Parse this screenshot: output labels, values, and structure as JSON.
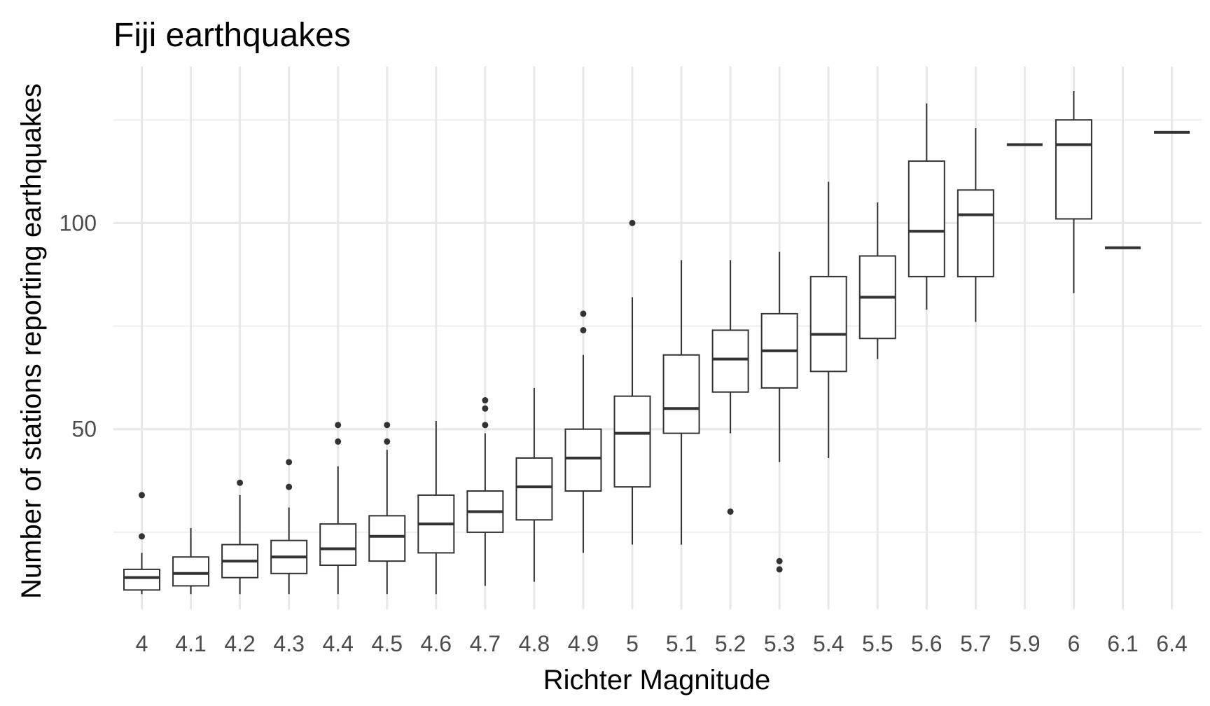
{
  "chart_data": {
    "type": "boxplot",
    "title": "Fiji earthquakes",
    "xlabel": "Richter Magnitude",
    "ylabel": "Number of stations reporting earthquakes",
    "ylim": [
      0,
      132
    ],
    "y_ticks": [
      50,
      100
    ],
    "y_minor_ticks": [
      25,
      75,
      125
    ],
    "grid": true,
    "legend": "none",
    "categories": [
      "4",
      "4.1",
      "4.2",
      "4.3",
      "4.4",
      "4.5",
      "4.6",
      "4.7",
      "4.8",
      "4.9",
      "5",
      "5.1",
      "5.2",
      "5.3",
      "5.4",
      "5.5",
      "5.6",
      "5.7",
      "5.9",
      "6",
      "6.1",
      "6.4"
    ],
    "boxes": [
      {
        "category": "4",
        "lower_whisker": 10,
        "q1": 11,
        "median": 14,
        "q3": 16,
        "upper_whisker": 20,
        "outliers": [
          34,
          24
        ]
      },
      {
        "category": "4.1",
        "lower_whisker": 10,
        "q1": 12,
        "median": 15,
        "q3": 19,
        "upper_whisker": 26,
        "outliers": []
      },
      {
        "category": "4.2",
        "lower_whisker": 10,
        "q1": 14,
        "median": 18,
        "q3": 22,
        "upper_whisker": 34,
        "outliers": [
          37
        ]
      },
      {
        "category": "4.3",
        "lower_whisker": 10,
        "q1": 15,
        "median": 19,
        "q3": 23,
        "upper_whisker": 31,
        "outliers": [
          42,
          36
        ]
      },
      {
        "category": "4.4",
        "lower_whisker": 10,
        "q1": 17,
        "median": 21,
        "q3": 27,
        "upper_whisker": 41,
        "outliers": [
          51,
          47
        ]
      },
      {
        "category": "4.5",
        "lower_whisker": 10,
        "q1": 18,
        "median": 24,
        "q3": 29,
        "upper_whisker": 45,
        "outliers": [
          51,
          47
        ]
      },
      {
        "category": "4.6",
        "lower_whisker": 10,
        "q1": 20,
        "median": 27,
        "q3": 34,
        "upper_whisker": 52,
        "outliers": []
      },
      {
        "category": "4.7",
        "lower_whisker": 12,
        "q1": 25,
        "median": 30,
        "q3": 35,
        "upper_whisker": 49,
        "outliers": [
          57,
          55,
          51
        ]
      },
      {
        "category": "4.8",
        "lower_whisker": 13,
        "q1": 28,
        "median": 36,
        "q3": 43,
        "upper_whisker": 60,
        "outliers": []
      },
      {
        "category": "4.9",
        "lower_whisker": 20,
        "q1": 35,
        "median": 43,
        "q3": 50,
        "upper_whisker": 68,
        "outliers": [
          78,
          74
        ]
      },
      {
        "category": "5",
        "lower_whisker": 22,
        "q1": 36,
        "median": 49,
        "q3": 58,
        "upper_whisker": 82,
        "outliers": [
          100
        ]
      },
      {
        "category": "5.1",
        "lower_whisker": 22,
        "q1": 49,
        "median": 55,
        "q3": 68,
        "upper_whisker": 91,
        "outliers": []
      },
      {
        "category": "5.2",
        "lower_whisker": 49,
        "q1": 59,
        "median": 67,
        "q3": 74,
        "upper_whisker": 91,
        "outliers": [
          30
        ]
      },
      {
        "category": "5.3",
        "lower_whisker": 42,
        "q1": 60,
        "median": 69,
        "q3": 78,
        "upper_whisker": 93,
        "outliers": [
          18,
          16
        ]
      },
      {
        "category": "5.4",
        "lower_whisker": 43,
        "q1": 64,
        "median": 73,
        "q3": 87,
        "upper_whisker": 110,
        "outliers": []
      },
      {
        "category": "5.5",
        "lower_whisker": 67,
        "q1": 72,
        "median": 82,
        "q3": 92,
        "upper_whisker": 105,
        "outliers": []
      },
      {
        "category": "5.6",
        "lower_whisker": 79,
        "q1": 87,
        "median": 98,
        "q3": 115,
        "upper_whisker": 129,
        "outliers": []
      },
      {
        "category": "5.7",
        "lower_whisker": 76,
        "q1": 87,
        "median": 102,
        "q3": 108,
        "upper_whisker": 123,
        "outliers": []
      },
      {
        "category": "5.9",
        "lower_whisker": 119,
        "q1": 119,
        "median": 119,
        "q3": 119,
        "upper_whisker": 119,
        "outliers": []
      },
      {
        "category": "6",
        "lower_whisker": 83,
        "q1": 101,
        "median": 119,
        "q3": 125,
        "upper_whisker": 132,
        "outliers": []
      },
      {
        "category": "6.1",
        "lower_whisker": 94,
        "q1": 94,
        "median": 94,
        "q3": 94,
        "upper_whisker": 94,
        "outliers": []
      },
      {
        "category": "6.4",
        "lower_whisker": 122,
        "q1": 122,
        "median": 122,
        "q3": 122,
        "upper_whisker": 122,
        "outliers": []
      }
    ],
    "colors": {
      "box_stroke": "#333333",
      "box_fill": "#ffffff",
      "grid": "#ebebeb",
      "tick_text": "#4d4d4d"
    }
  }
}
